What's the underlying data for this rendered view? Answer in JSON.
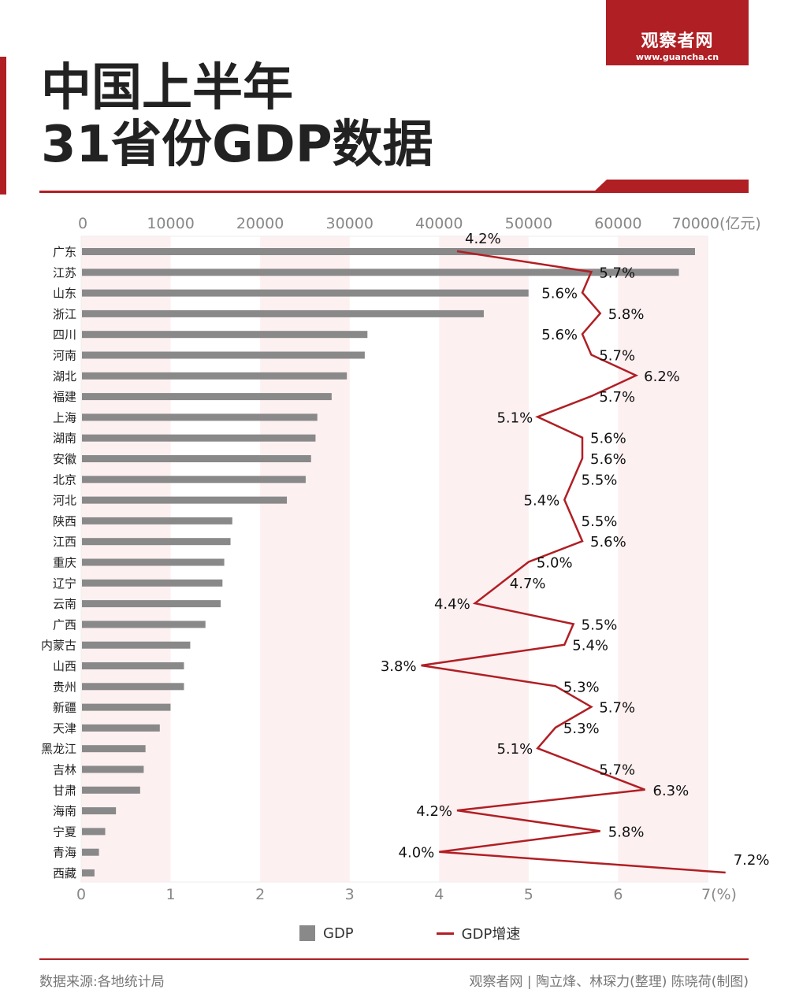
{
  "logo": {
    "name": "观察者网",
    "url": "www.guancha.cn"
  },
  "title": {
    "line1": "中国上半年",
    "line2": "31省份GDP数据"
  },
  "chart_data": {
    "type": "bar+line",
    "orientation": "horizontal",
    "categories": [
      "广东",
      "江苏",
      "山东",
      "浙江",
      "四川",
      "河南",
      "湖北",
      "福建",
      "上海",
      "湖南",
      "安徽",
      "北京",
      "河北",
      "陕西",
      "江西",
      "重庆",
      "辽宁",
      "云南",
      "广西",
      "内蒙古",
      "山西",
      "贵州",
      "新疆",
      "天津",
      "黑龙江",
      "吉林",
      "甘肃",
      "海南",
      "宁夏",
      "青海",
      "西藏"
    ],
    "series": [
      {
        "name": "GDP",
        "type": "bar",
        "axis": "top",
        "color": "#898989",
        "values": [
          68500,
          66700,
          49900,
          44900,
          31900,
          31600,
          29600,
          27900,
          26300,
          26100,
          25600,
          25000,
          22900,
          16800,
          16600,
          15900,
          15700,
          15500,
          13800,
          12100,
          11400,
          11400,
          9900,
          8700,
          7100,
          6900,
          6500,
          3800,
          2600,
          1900,
          1400
        ]
      },
      {
        "name": "GDP增速",
        "type": "line",
        "axis": "bottom",
        "color": "#b01f24",
        "values": [
          4.2,
          5.7,
          5.6,
          5.8,
          5.6,
          5.7,
          6.2,
          5.7,
          5.1,
          5.6,
          5.6,
          5.5,
          5.4,
          5.5,
          5.6,
          5.0,
          4.7,
          4.4,
          5.5,
          5.4,
          3.8,
          5.3,
          5.7,
          5.3,
          5.1,
          5.7,
          6.3,
          4.2,
          5.8,
          4.0,
          7.2
        ],
        "labels": [
          "4.2%",
          "5.7%",
          "5.6%",
          "5.8%",
          "5.6%",
          "5.7%",
          "6.2%",
          "5.7%",
          "5.1%",
          "5.6%",
          "5.6%",
          "5.5%",
          "5.4%",
          "5.5%",
          "5.6%",
          "5.0%",
          "4.7%",
          "4.4%",
          "5.5%",
          "5.4%",
          "3.8%",
          "5.3%",
          "5.7%",
          "5.3%",
          "5.1%",
          "5.7%",
          "6.3%",
          "4.2%",
          "5.8%",
          "4.0%",
          "7.2%"
        ]
      }
    ],
    "top_axis": {
      "range": [
        0,
        70000
      ],
      "ticks": [
        "0",
        "10000",
        "20000",
        "30000",
        "40000",
        "50000",
        "60000",
        "70000(亿元)"
      ]
    },
    "bottom_axis": {
      "range": [
        0,
        7
      ],
      "ticks": [
        "0",
        "1",
        "2",
        "3",
        "4",
        "5",
        "6",
        "7(%)"
      ]
    },
    "band_color": "#fdf0f1",
    "legend": {
      "position": "bottom",
      "items": [
        "GDP",
        "GDP增速"
      ]
    }
  },
  "footer": {
    "source": "数据来源:各地统计局",
    "credit": "观察者网 | 陶立烽、林琛力(整理) 陈晓荷(制图)"
  }
}
